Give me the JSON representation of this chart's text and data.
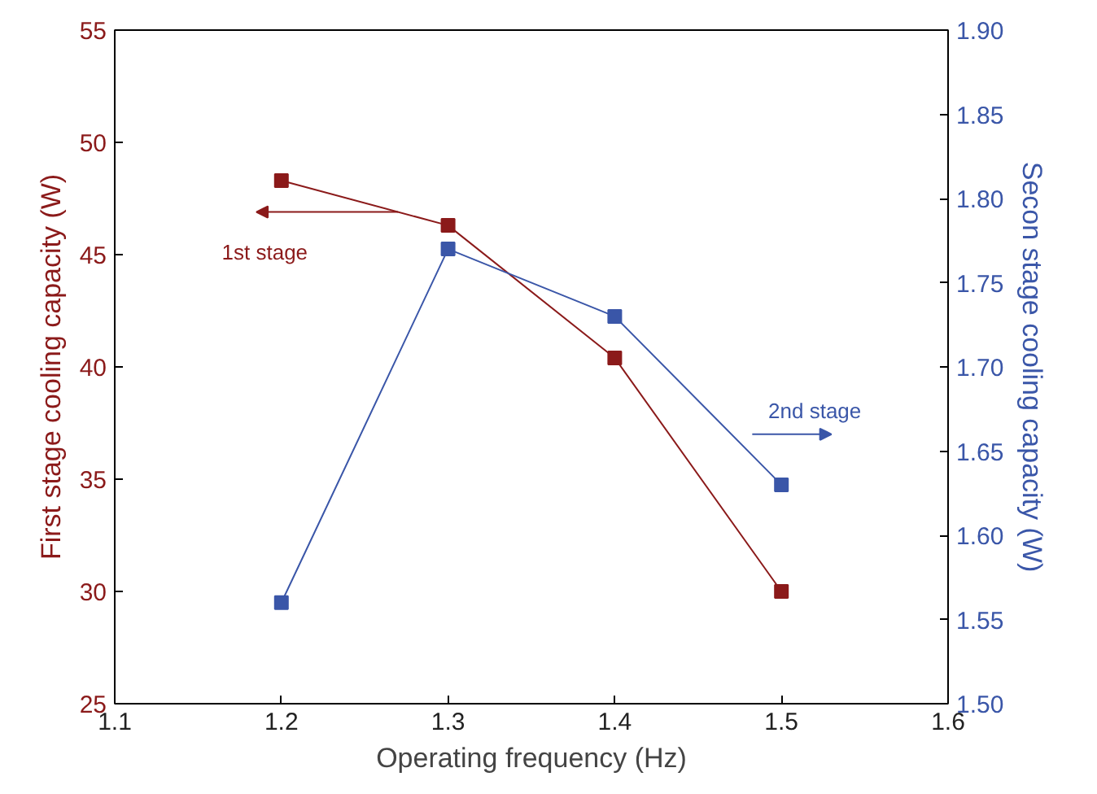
{
  "chart_data": {
    "type": "line",
    "xlabel": "Operating frequency (Hz)",
    "ylabel": "First stage cooling capacity (W)",
    "y2label": "Secon stage cooling capacity (W)",
    "x": [
      1.2,
      1.3,
      1.4,
      1.5
    ],
    "series": [
      {
        "color": "#8b1a1a",
        "values": [
          48.3,
          46.3,
          40.4,
          30.0
        ]
      },
      {
        "color": "#3a56a8",
        "values": [
          1.56,
          1.77,
          1.73,
          1.63
        ],
        "axis": "y2"
      }
    ],
    "annotations": [
      "1st stage",
      "2nd stage"
    ],
    "xlim": [
      1.1,
      1.6
    ],
    "xticks": [
      1.1,
      1.2,
      1.3,
      1.4,
      1.5,
      1.6
    ],
    "ylim": [
      25,
      55
    ],
    "yticks": [
      25,
      30,
      35,
      40,
      45,
      50,
      55
    ],
    "y2lim": [
      1.5,
      1.9
    ],
    "y2ticks": [
      {
        "value": 1.5,
        "label": "1.50"
      },
      {
        "value": 1.55,
        "label": "1.55"
      },
      {
        "value": 1.6,
        "label": "1.60"
      },
      {
        "value": 1.65,
        "label": "1.65"
      },
      {
        "value": 1.7,
        "label": "1.70"
      },
      {
        "value": 1.75,
        "label": "1.75"
      },
      {
        "value": 1.8,
        "label": "1.80"
      },
      {
        "value": 1.85,
        "label": "1.85"
      },
      {
        "value": 1.9,
        "label": "1.90"
      }
    ],
    "grid": false,
    "marker": "square",
    "line_style": "solid"
  }
}
